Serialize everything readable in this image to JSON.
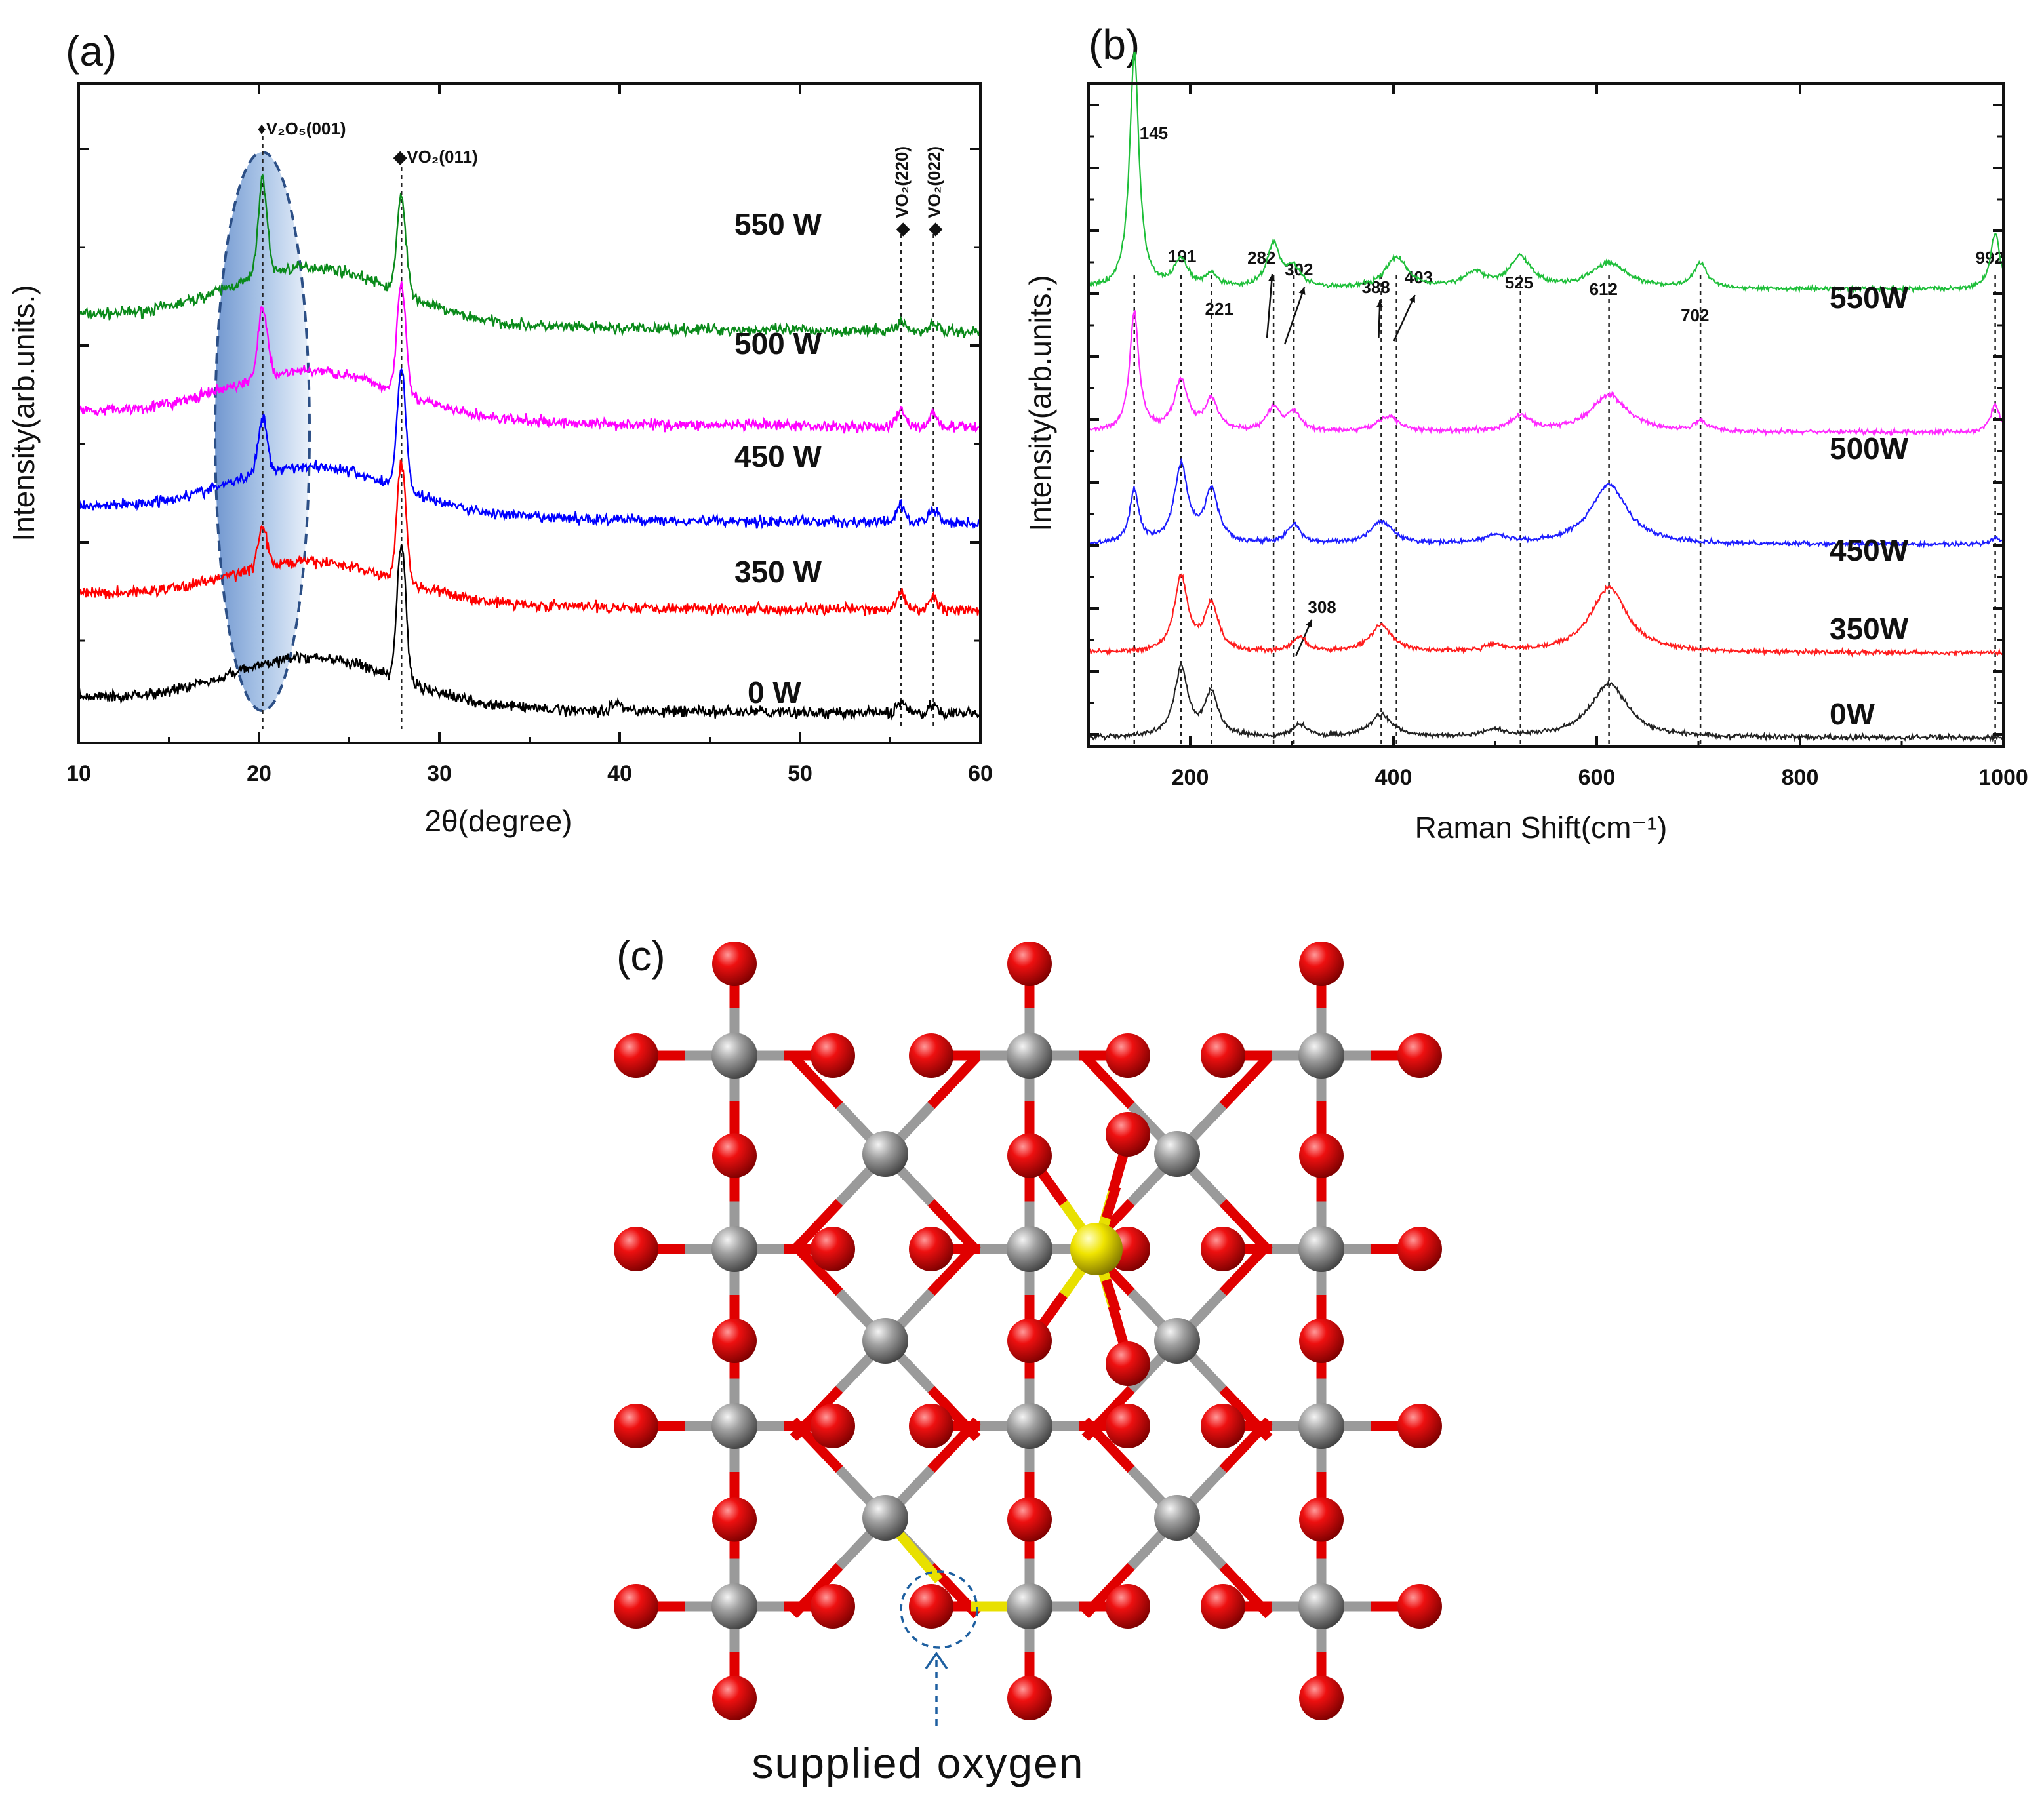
{
  "chart_data": [
    {
      "panel": "(a)",
      "type": "line",
      "xlabel": "2θ(degree)",
      "ylabel": "Intensity(arb.units.)",
      "xlim": [
        10,
        60
      ],
      "xticks": [
        10,
        20,
        30,
        40,
        50,
        60
      ],
      "y_units": "arbitrary (stacked offsets)",
      "series": [
        {
          "name": "550 W",
          "color": "#0a8a1a",
          "baseline": 2.45,
          "shoulder": 0.35,
          "peaks": [
            {
              "x": 20.2,
              "h": 0.6
            },
            {
              "x": 27.9,
              "h": 0.6
            },
            {
              "x": 55.6,
              "h": 0.06
            },
            {
              "x": 57.4,
              "h": 0.05
            }
          ]
        },
        {
          "name": "500 W",
          "color": "#ff00ff",
          "baseline": 1.85,
          "shoulder": 0.3,
          "peaks": [
            {
              "x": 20.2,
              "h": 0.45
            },
            {
              "x": 27.9,
              "h": 0.7
            },
            {
              "x": 55.6,
              "h": 0.1
            },
            {
              "x": 57.4,
              "h": 0.08
            }
          ]
        },
        {
          "name": "450 W",
          "color": "#0000ff",
          "baseline": 1.25,
          "shoulder": 0.3,
          "peaks": [
            {
              "x": 20.2,
              "h": 0.35
            },
            {
              "x": 27.9,
              "h": 0.75
            },
            {
              "x": 55.6,
              "h": 0.1
            },
            {
              "x": 57.4,
              "h": 0.08
            }
          ]
        },
        {
          "name": "350 W",
          "color": "#ff0000",
          "baseline": 0.7,
          "shoulder": 0.25,
          "peaks": [
            {
              "x": 20.2,
              "h": 0.25
            },
            {
              "x": 27.9,
              "h": 0.75
            },
            {
              "x": 55.6,
              "h": 0.1
            },
            {
              "x": 57.4,
              "h": 0.08
            }
          ]
        },
        {
          "name": "0 W",
          "color": "#000000",
          "baseline": 0.05,
          "shoulder": 0.3,
          "peaks": [
            {
              "x": 27.9,
              "h": 0.85
            },
            {
              "x": 39.8,
              "h": 0.06
            },
            {
              "x": 55.6,
              "h": 0.08
            },
            {
              "x": 57.4,
              "h": 0.06
            }
          ]
        }
      ],
      "annotations": [
        {
          "text": "♦V₂O₅(001)",
          "x": 20.2
        },
        {
          "text": "◆VO₂(011)",
          "x": 27.9
        },
        {
          "text": "◆ VO₂(220)",
          "x": 55.6
        },
        {
          "text": "◆ VO₂(022)",
          "x": 57.4
        }
      ],
      "highlight": {
        "shape": "ellipse",
        "x_center": 20.2
      }
    },
    {
      "panel": "(b)",
      "type": "line",
      "xlabel": "Raman Shift(cm⁻¹)",
      "ylabel": "Intensity(arb.units.)",
      "xlim": [
        100,
        1000
      ],
      "xticks": [
        200,
        400,
        600,
        800,
        1000
      ],
      "series": [
        {
          "name": "550W",
          "color": "#1fbf3a",
          "baseline": 3.6,
          "peaks": [
            {
              "x": 145,
              "h": 1.9
            },
            {
              "x": 191,
              "h": 0.22
            },
            {
              "x": 221,
              "h": 0.1
            },
            {
              "x": 282,
              "h": 0.35
            },
            {
              "x": 302,
              "h": 0.15
            },
            {
              "x": 403,
              "h": 0.25
            },
            {
              "x": 480,
              "h": 0.12
            },
            {
              "x": 525,
              "h": 0.25
            },
            {
              "x": 612,
              "h": 0.2
            },
            {
              "x": 702,
              "h": 0.2
            },
            {
              "x": 992,
              "h": 0.45
            }
          ]
        },
        {
          "name": "500W",
          "color": "#ff2aff",
          "baseline": 2.45,
          "peaks": [
            {
              "x": 145,
              "h": 0.95
            },
            {
              "x": 191,
              "h": 0.4
            },
            {
              "x": 221,
              "h": 0.25
            },
            {
              "x": 282,
              "h": 0.18
            },
            {
              "x": 302,
              "h": 0.15
            },
            {
              "x": 395,
              "h": 0.12
            },
            {
              "x": 525,
              "h": 0.12
            },
            {
              "x": 612,
              "h": 0.3
            },
            {
              "x": 702,
              "h": 0.08
            },
            {
              "x": 992,
              "h": 0.22
            }
          ]
        },
        {
          "name": "450W",
          "color": "#1e1eff",
          "baseline": 1.55,
          "peaks": [
            {
              "x": 145,
              "h": 0.42
            },
            {
              "x": 191,
              "h": 0.62
            },
            {
              "x": 221,
              "h": 0.42
            },
            {
              "x": 302,
              "h": 0.15
            },
            {
              "x": 388,
              "h": 0.18
            },
            {
              "x": 500,
              "h": 0.06
            },
            {
              "x": 612,
              "h": 0.48
            },
            {
              "x": 992,
              "h": 0.06
            }
          ]
        },
        {
          "name": "350W",
          "color": "#ff1e1e",
          "baseline": 0.68,
          "peaks": [
            {
              "x": 191,
              "h": 0.6
            },
            {
              "x": 221,
              "h": 0.38
            },
            {
              "x": 308,
              "h": 0.12
            },
            {
              "x": 388,
              "h": 0.22
            },
            {
              "x": 500,
              "h": 0.05
            },
            {
              "x": 612,
              "h": 0.52
            }
          ]
        },
        {
          "name": "0W",
          "color": "#222222",
          "baseline": 0.0,
          "peaks": [
            {
              "x": 191,
              "h": 0.55
            },
            {
              "x": 221,
              "h": 0.35
            },
            {
              "x": 308,
              "h": 0.1
            },
            {
              "x": 388,
              "h": 0.18
            },
            {
              "x": 500,
              "h": 0.05
            },
            {
              "x": 612,
              "h": 0.43
            }
          ]
        }
      ],
      "peak_labels": [
        {
          "text": "145",
          "x": 145
        },
        {
          "text": "191",
          "x": 191
        },
        {
          "text": "221",
          "x": 221
        },
        {
          "text": "282",
          "x": 282
        },
        {
          "text": "302",
          "x": 302
        },
        {
          "text": "388",
          "x": 388
        },
        {
          "text": "403",
          "x": 403
        },
        {
          "text": "525",
          "x": 525
        },
        {
          "text": "612",
          "x": 612
        },
        {
          "text": "702",
          "x": 702
        },
        {
          "text": "992",
          "x": 992
        },
        {
          "text": "308",
          "x": 308
        }
      ],
      "dashed_lines_x": [
        145,
        191,
        221,
        282,
        302,
        388,
        403,
        525,
        612,
        702,
        992
      ]
    }
  ],
  "structure": {
    "panel": "(c)",
    "callout": "supplied oxygen",
    "atom_colors": {
      "oxygen": "#e00000",
      "vanadium": "#8c8c8c",
      "dopant": "#e8e000",
      "bond_highlight": "#e8e000"
    }
  }
}
